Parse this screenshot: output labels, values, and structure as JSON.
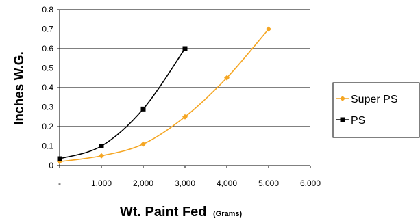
{
  "chart_data": {
    "type": "line",
    "title": "",
    "ylabel": "Inches W.G.",
    "xlabel": "Wt. Paint Fed",
    "xlabel_unit": "(Grams)",
    "xlim": [
      0,
      6000
    ],
    "ylim": [
      0,
      0.8
    ],
    "x_ticks": [
      {
        "value": 0,
        "label": "-"
      },
      {
        "value": 1000,
        "label": "1,000"
      },
      {
        "value": 2000,
        "label": "2,000"
      },
      {
        "value": 3000,
        "label": "3,000"
      },
      {
        "value": 4000,
        "label": "4,000"
      },
      {
        "value": 5000,
        "label": "5,000"
      },
      {
        "value": 6000,
        "label": "6,000"
      }
    ],
    "y_ticks": [
      {
        "value": 0,
        "label": "0"
      },
      {
        "value": 0.1,
        "label": "0.1"
      },
      {
        "value": 0.2,
        "label": "0.2"
      },
      {
        "value": 0.3,
        "label": "0.3"
      },
      {
        "value": 0.4,
        "label": "0.4"
      },
      {
        "value": 0.5,
        "label": "0.5"
      },
      {
        "value": 0.6,
        "label": "0.6"
      },
      {
        "value": 0.7,
        "label": "0.7"
      },
      {
        "value": 0.8,
        "label": "0.8"
      }
    ],
    "grid": "horizontal",
    "legend_position": "right",
    "series": [
      {
        "name": "Super PS",
        "color": "#f5a623",
        "marker": "diamond",
        "x": [
          0,
          1000,
          2000,
          3000,
          4000,
          5000
        ],
        "y": [
          0.02,
          0.05,
          0.11,
          0.25,
          0.45,
          0.7
        ]
      },
      {
        "name": "PS",
        "color": "#000000",
        "marker": "square",
        "x": [
          0,
          1000,
          2000,
          3000
        ],
        "y": [
          0.035,
          0.1,
          0.29,
          0.6
        ]
      }
    ]
  }
}
